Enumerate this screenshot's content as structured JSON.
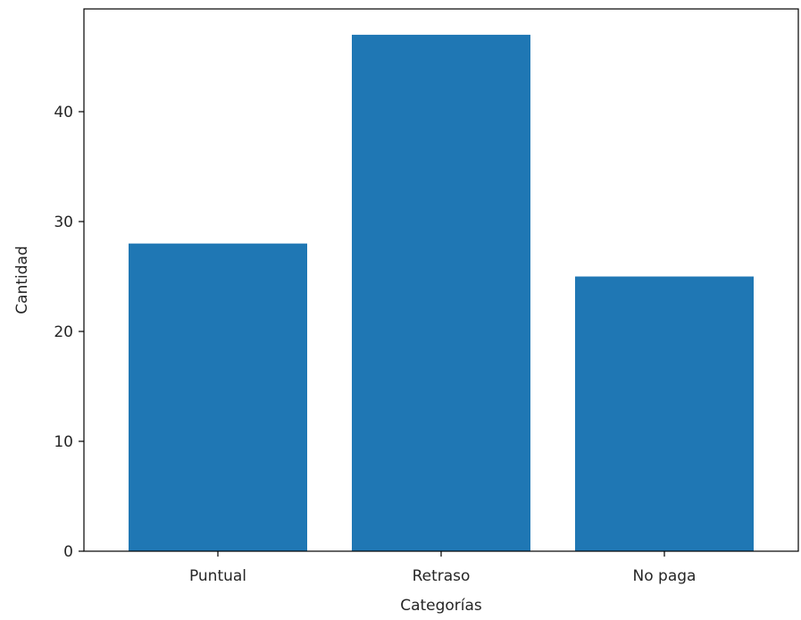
{
  "chart_data": {
    "type": "bar",
    "categories": [
      "Puntual",
      "Retraso",
      "No paga"
    ],
    "values": [
      28,
      47,
      25
    ],
    "xlabel": "Categorías",
    "ylabel": "Cantidad",
    "ylim": [
      0,
      49.35
    ],
    "yticks": [
      0,
      10,
      20,
      30,
      40
    ],
    "grid": false,
    "bar_color": "#1f77b4"
  }
}
